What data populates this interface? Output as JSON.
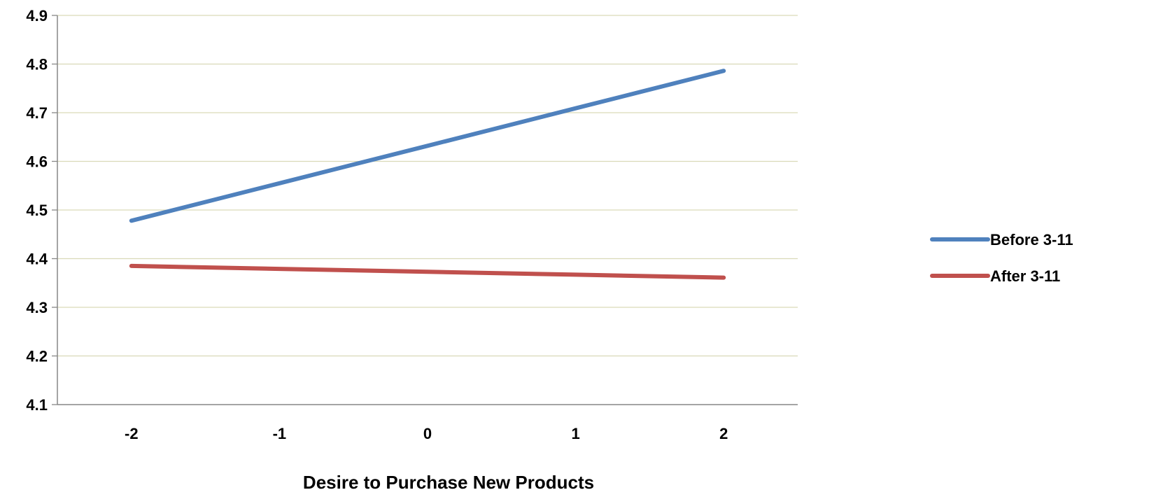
{
  "chart_data": {
    "type": "line",
    "title": "",
    "xlabel": "Desire to Purchase New Products",
    "ylabel": "",
    "categories": [
      "-2",
      "-1",
      "0",
      "1",
      "2"
    ],
    "x": [
      -2,
      -1,
      0,
      1,
      2
    ],
    "series": [
      {
        "name": "Before 3-11",
        "color": "#4F81BD",
        "values": [
          4.478,
          4.555,
          4.632,
          4.709,
          4.786
        ]
      },
      {
        "name": "After 3-11",
        "color": "#C0504D",
        "values": [
          4.385,
          4.379,
          4.373,
          4.367,
          4.361
        ]
      }
    ],
    "ylim": [
      4.1,
      4.9
    ],
    "yticks": [
      "4.1",
      "4.2",
      "4.3",
      "4.4",
      "4.5",
      "4.6",
      "4.7",
      "4.8",
      "4.9"
    ],
    "xlim": [
      -2.5,
      2.5
    ],
    "grid": true,
    "gridline_color": "#D9D9B8",
    "legend_position": "right"
  }
}
